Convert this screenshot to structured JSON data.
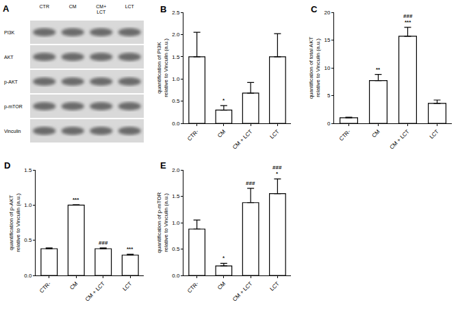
{
  "blot": {
    "panel_label": "A",
    "lanes": [
      "CTR",
      "CM",
      "CM+ LCT",
      "LCT"
    ],
    "proteins": [
      "PI3K",
      "AKT",
      "p-AKT",
      "p-mTOR",
      "Vinculin"
    ]
  },
  "chart_data": [
    {
      "type": "bar",
      "panel_label": "B",
      "categories": [
        "CTR-",
        "CM",
        "CM + LCT",
        "LCT"
      ],
      "values": [
        1.5,
        0.3,
        0.68,
        1.5
      ],
      "error": [
        0.55,
        0.1,
        0.24,
        0.52
      ],
      "color": "#ffffff",
      "y_label": "quantification of PI3K relative to Vinculin (a.u.)",
      "ylim": [
        0,
        2.5
      ],
      "yticks": [
        {
          "value": 0,
          "label": "0.0"
        },
        {
          "value": 0.5,
          "label": "0.5"
        },
        {
          "value": 1,
          "label": "1.0"
        },
        {
          "value": 1.5,
          "label": "1.5"
        },
        {
          "value": 2,
          "label": "2.0"
        },
        {
          "value": 2.5,
          "label": "2.5"
        }
      ],
      "grid": false,
      "annotations": [
        {
          "category": "CM",
          "text": "*"
        }
      ]
    },
    {
      "type": "bar",
      "panel_label": "C",
      "categories": [
        "CTR-",
        "CM",
        "CM + LCT",
        "LCT"
      ],
      "values": [
        1.0,
        7.7,
        15.7,
        3.6
      ],
      "error": [
        0.1,
        1.1,
        1.6,
        0.6
      ],
      "color": "#ffffff",
      "y_label": "quantification of total AKT relative to Vinculin (a.u.)",
      "ylim": [
        0,
        20
      ],
      "yticks": [
        0,
        5,
        10,
        15,
        20
      ],
      "grid": false,
      "annotations": [
        {
          "category": "CM",
          "text": "**"
        },
        {
          "category": "CM + LCT",
          "text": "###"
        },
        {
          "category": "CM + LCT",
          "text": "***"
        }
      ]
    },
    {
      "type": "bar",
      "panel_label": "D",
      "categories": [
        "CTR-",
        "CM",
        "CM + LCT",
        "LCT"
      ],
      "values": [
        0.38,
        1.0,
        0.38,
        0.29
      ],
      "error": [
        0.01,
        0.005,
        0.01,
        0.01
      ],
      "color": "#ffffff",
      "y_label": "quantification of p-AKT relative to Vinculin (a.u.)",
      "ylim": [
        0,
        1.5
      ],
      "yticks": [
        {
          "value": 0,
          "label": "0.0"
        },
        {
          "value": 0.5,
          "label": "0.5"
        },
        {
          "value": 1,
          "label": "1.0"
        },
        {
          "value": 1.5,
          "label": "1.5"
        }
      ],
      "grid": false,
      "annotations": [
        {
          "category": "CM",
          "text": "***"
        },
        {
          "category": "CM + LCT",
          "text": "###"
        },
        {
          "category": "LCT",
          "text": "***"
        }
      ]
    },
    {
      "type": "bar",
      "panel_label": "E",
      "categories": [
        "CTR-",
        "CM",
        "CM + LCT",
        "LCT"
      ],
      "values": [
        0.88,
        0.18,
        1.38,
        1.55
      ],
      "error": [
        0.17,
        0.05,
        0.27,
        0.28
      ],
      "color": "#ffffff",
      "y_label": "quantification of p-mTOR relative to Vinculin (a.u.)",
      "ylim": [
        0,
        2.0
      ],
      "yticks": [
        {
          "value": 0,
          "label": "0.0"
        },
        {
          "value": 0.5,
          "label": "0.5"
        },
        {
          "value": 1,
          "label": "1.0"
        },
        {
          "value": 1.5,
          "label": "1.5"
        },
        {
          "value": 2,
          "label": "2.0"
        }
      ],
      "grid": false,
      "annotations": [
        {
          "category": "CM",
          "text": "*"
        },
        {
          "category": "CM + LCT",
          "text": "###"
        },
        {
          "category": "LCT",
          "text": "###"
        },
        {
          "category": "LCT",
          "text": "*"
        }
      ]
    }
  ]
}
